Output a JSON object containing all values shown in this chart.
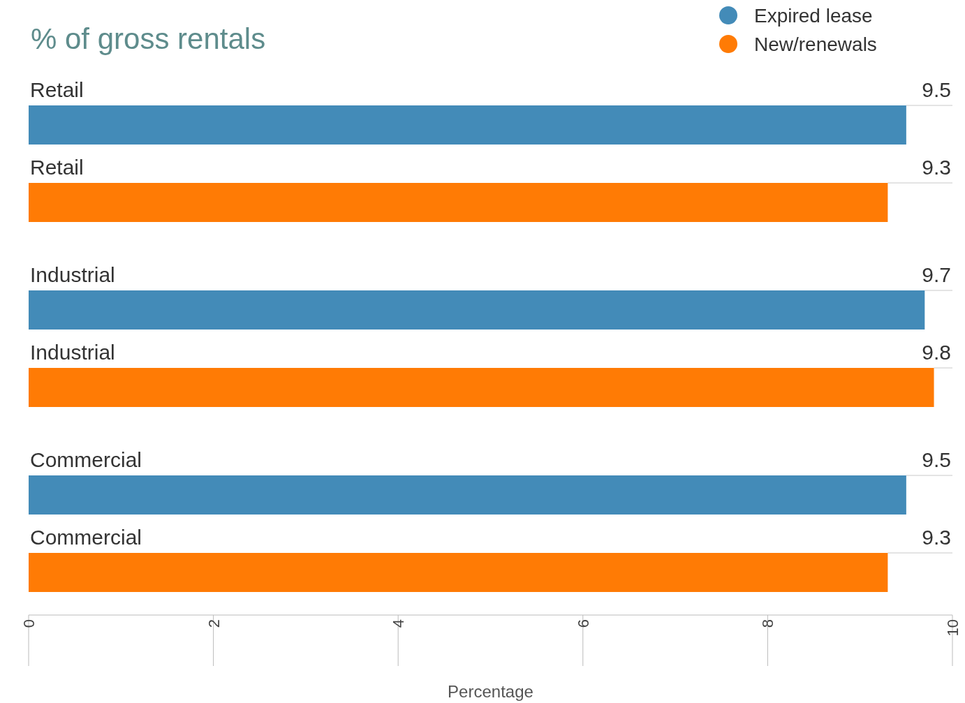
{
  "chart_data": {
    "type": "bar",
    "orientation": "horizontal",
    "title": "% of gross rentals",
    "xlabel": "Percentage",
    "categories": [
      "Retail",
      "Industrial",
      "Commercial"
    ],
    "series": [
      {
        "name": "Expired lease",
        "color": "#438bb8",
        "values": [
          9.5,
          9.7,
          9.5
        ]
      },
      {
        "name": "New/renewals",
        "color": "#ff7b05",
        "values": [
          9.3,
          9.8,
          9.3
        ]
      }
    ],
    "xlim": [
      0,
      10
    ],
    "xticks": [
      0,
      2,
      4,
      6,
      8,
      10
    ],
    "data_labels": true,
    "legend": "top right",
    "grid": false
  }
}
